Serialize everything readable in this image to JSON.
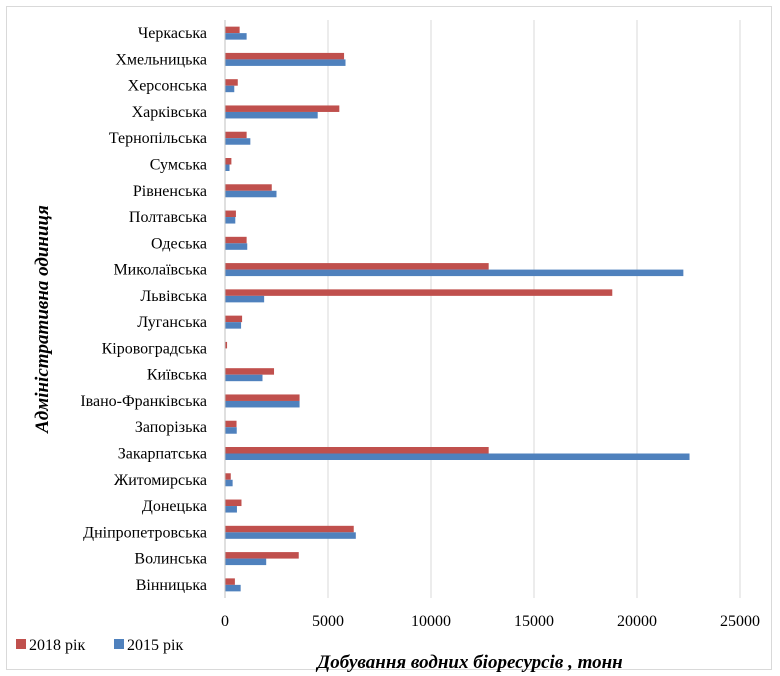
{
  "chart_data": {
    "type": "bar",
    "orientation": "horizontal",
    "categories": [
      "Вінницька",
      "Волинська",
      "Дніпропетровська",
      "Донецька",
      "Житомирська",
      "Закарпатська",
      "Запорізька",
      "Івано-Франківська",
      "Київська",
      "Кіровоградська",
      "Луганська",
      "Львівська",
      "Миколаївська",
      "Одеська",
      "Полтавська",
      "Рівненська",
      "Сумська",
      "Тернопільська",
      "Харківська",
      "Херсонська",
      "Хмельницька",
      "Черкаська"
    ],
    "series": [
      {
        "name": "2018 рік",
        "color": "#c0504d",
        "values": [
          480,
          3580,
          6250,
          800,
          280,
          12800,
          560,
          3620,
          2380,
          100,
          830,
          18800,
          12800,
          1050,
          530,
          2270,
          310,
          1050,
          5550,
          620,
          5780,
          710
        ]
      },
      {
        "name": "2015 рік",
        "color": "#4f81bd",
        "values": [
          760,
          2000,
          6350,
          580,
          370,
          22550,
          570,
          3620,
          1820,
          0,
          780,
          1900,
          22250,
          1080,
          500,
          2500,
          220,
          1230,
          4500,
          450,
          5850,
          1050
        ]
      }
    ],
    "xlim": [
      0,
      25000
    ],
    "xticks": [
      0,
      5000,
      10000,
      15000,
      20000,
      25000
    ],
    "xlabel": "Добування водних біоресурсів , тонн",
    "ylabel": "Адміністративна одиниця",
    "grid": "vertical",
    "legend_position": "bottom-left"
  },
  "colors": {
    "gridline": "#d9d9d9",
    "axis": "#bfbfbf"
  }
}
